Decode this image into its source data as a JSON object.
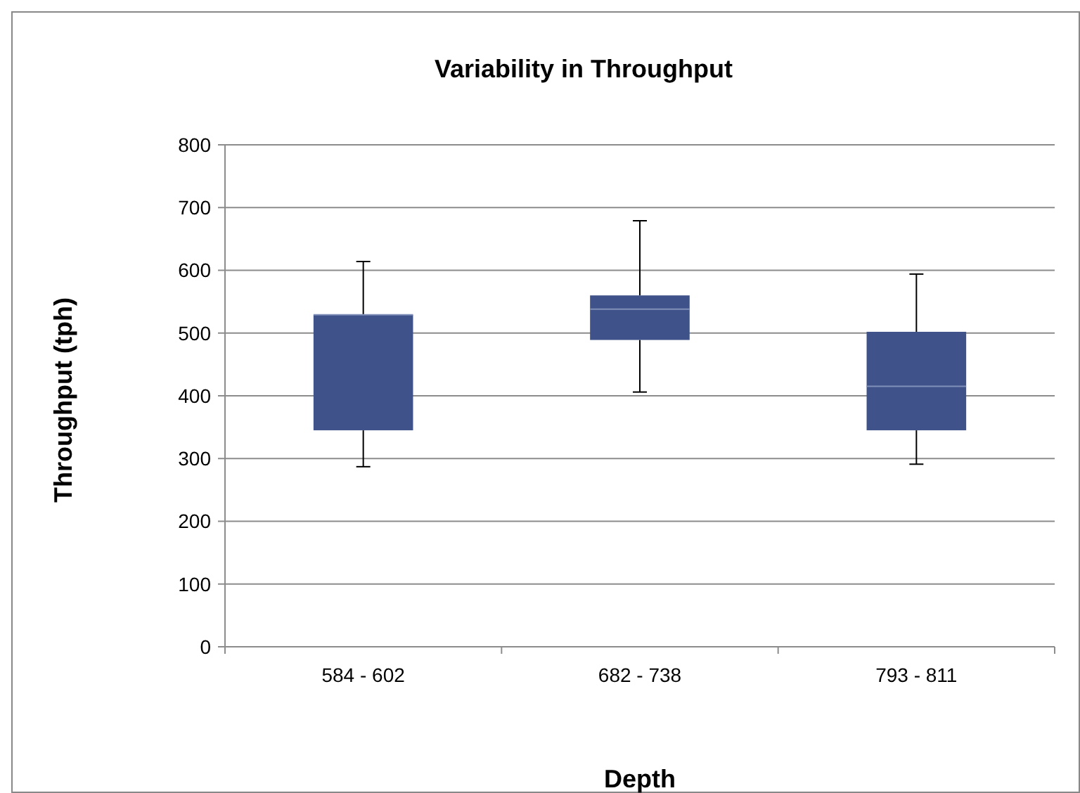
{
  "chart_data": {
    "type": "box",
    "title": "Variability in Throughput",
    "xlabel": "Depth",
    "ylabel": "Throughput (tph)",
    "categories": [
      "584 - 602",
      "682 - 738",
      "793 - 811"
    ],
    "color": "#3f5289",
    "boxes": [
      {
        "low": 287,
        "q1": 345,
        "median": 529,
        "q3": 529,
        "high": 614
      },
      {
        "low": 406,
        "q1": 489,
        "median": 538,
        "q3": 560,
        "high": 679
      },
      {
        "low": 291,
        "q1": 345,
        "median": 415,
        "q3": 502,
        "high": 594
      }
    ],
    "ylim": [
      0,
      800
    ],
    "yticks": [
      0,
      100,
      200,
      300,
      400,
      500,
      600,
      700,
      800
    ],
    "grid": "y"
  }
}
